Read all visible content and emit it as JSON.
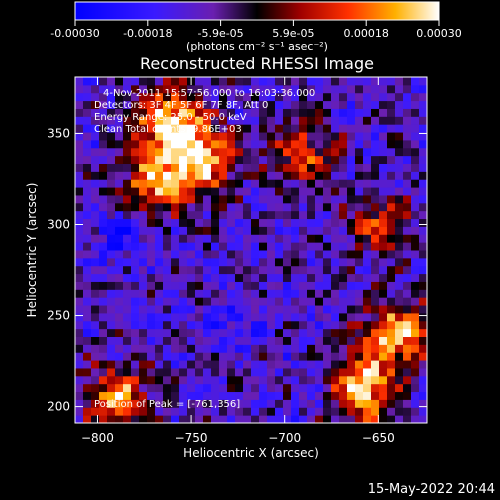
{
  "chart_data": {
    "type": "heatmap",
    "title": "Reconstructed RHESSI Image",
    "colorbar": {
      "tick_labels": [
        "-0.00030",
        "-0.00018",
        "-5.9e-05",
        "5.9e-05",
        "0.00018",
        "0.00030"
      ],
      "range": [
        -0.0003,
        0.0003
      ],
      "unit_label": "(photons cm⁻² s⁻¹ asec⁻²)",
      "colormap": "blue-purple-black-red-orange-yellow-white"
    },
    "annotations": {
      "line1": "4-Nov-2011 15:57:56.000 to 16:03:36.000",
      "line2": "Detectors: 3F 4F 5F 6F 7F 8F, Att 0",
      "line3": "Energy Range: 25.0 - 50.0 keV",
      "line4": "Clean    Total counts: 9.86E+03",
      "peak": "Position of Peak = [-761,356]"
    },
    "xlabel": "Heliocentric X (arcsec)",
    "ylabel": "Heliocentric Y (arcsec)",
    "xlim": [
      -812,
      -624
    ],
    "ylim": [
      191,
      381
    ],
    "x_ticks": [
      -800,
      -750,
      -700,
      -650
    ],
    "y_ticks": [
      200,
      250,
      300,
      350
    ],
    "x_tick_labels": [
      "−800",
      "−750",
      "−700",
      "−650"
    ],
    "y_tick_labels": [
      "200",
      "250",
      "300",
      "350"
    ],
    "hotspots": [
      {
        "x": -761,
        "y": 356,
        "level": 1.0
      },
      {
        "x": -745,
        "y": 335,
        "level": 0.9
      },
      {
        "x": -770,
        "y": 322,
        "level": 0.75
      },
      {
        "x": -660,
        "y": 210,
        "level": 1.0
      },
      {
        "x": -640,
        "y": 240,
        "level": 0.9
      },
      {
        "x": -790,
        "y": 205,
        "level": 0.8
      },
      {
        "x": -690,
        "y": 340,
        "level": 0.6
      },
      {
        "x": -650,
        "y": 300,
        "level": 0.5
      }
    ],
    "coldspots": [
      {
        "x": -790,
        "y": 295,
        "level": 0.8
      },
      {
        "x": -730,
        "y": 245,
        "level": 0.6
      },
      {
        "x": -680,
        "y": 210,
        "level": 0.6
      }
    ]
  },
  "footer": {
    "date": "15-May-2022 20:44"
  },
  "colors": {
    "background": "#000000",
    "text": "#ffffff"
  }
}
